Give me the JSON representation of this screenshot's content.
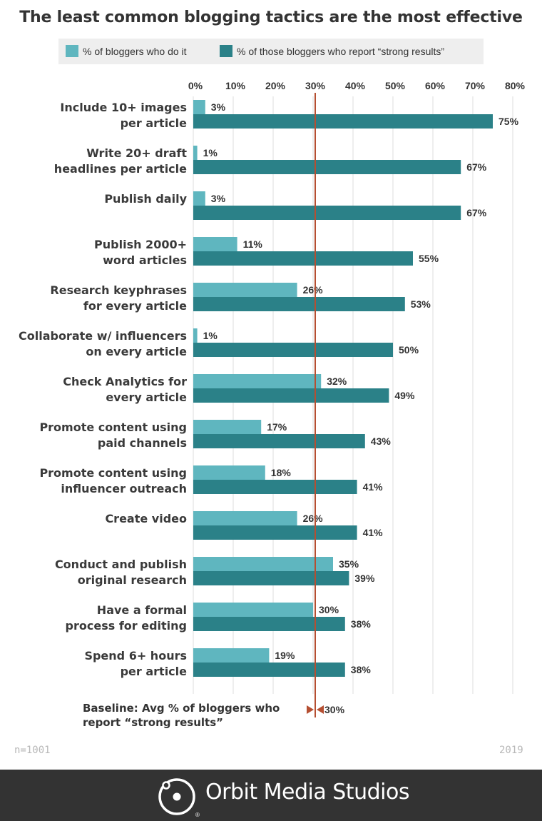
{
  "colors": {
    "series_light": "#5fb6bf",
    "series_dark": "#2b8188",
    "baseline": "#b54f32",
    "footer_bg": "#333333",
    "grid": "#dddddd"
  },
  "chart_data": {
    "type": "bar",
    "orientation": "horizontal",
    "title": "The least common blogging tactics are the most effective",
    "categories": [
      [
        "Include 10+ images",
        "per article"
      ],
      [
        "Write 20+ draft",
        "headlines per article"
      ],
      [
        "Publish daily"
      ],
      [
        "Publish 2000+",
        "word articles"
      ],
      [
        "Research keyphrases",
        "for every article"
      ],
      [
        "Collaborate w/ influencers",
        "on every article"
      ],
      [
        "Check Analytics for",
        "every article"
      ],
      [
        "Promote content using",
        "paid channels"
      ],
      [
        "Promote content using",
        "influencer outreach"
      ],
      [
        "Create video"
      ],
      [
        "Conduct and publish",
        "original research"
      ],
      [
        "Have a formal",
        "process for editing"
      ],
      [
        "Spend 6+ hours",
        "per article"
      ]
    ],
    "series": [
      {
        "name": "% of bloggers who do it",
        "values": [
          3,
          1,
          3,
          11,
          26,
          1,
          32,
          17,
          18,
          26,
          35,
          30,
          19
        ]
      },
      {
        "name": "% of those bloggers who report “strong results”",
        "values": [
          75,
          67,
          67,
          55,
          53,
          50,
          49,
          43,
          41,
          41,
          39,
          38,
          38
        ]
      }
    ],
    "value_suffix": "%",
    "xlim": [
      0,
      80
    ],
    "x_ticks": [
      0,
      10,
      20,
      30,
      40,
      50,
      60,
      70,
      80
    ],
    "x_tick_labels": [
      "0%",
      "10%",
      "20%",
      "30%",
      "40%",
      "50%",
      "60%",
      "70%",
      "80%"
    ],
    "baseline": {
      "value": 30,
      "label_line1": "Baseline: Avg % of bloggers who",
      "label_line2": "report “strong results”",
      "value_label": "30%"
    },
    "grid": true,
    "legend_position": "top"
  },
  "footer": {
    "sample_size": "n=1001",
    "year": "2019",
    "brand": "Orbit Media Studios",
    "icon": "orbit-logo-icon"
  }
}
